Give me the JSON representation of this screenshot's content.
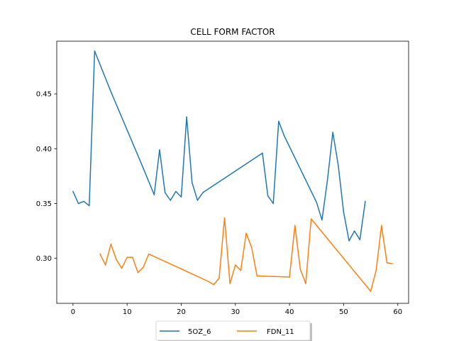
{
  "chart_data": {
    "type": "line",
    "title": "CELL FORM FACTOR",
    "xlabel": "",
    "ylabel": "",
    "xlim": [
      -3,
      62
    ],
    "ylim": [
      0.259,
      0.498
    ],
    "xticks": [
      0,
      10,
      20,
      30,
      40,
      50,
      60
    ],
    "yticks": [
      0.3,
      0.35,
      0.4,
      0.45
    ],
    "xtick_labels": [
      "0",
      "10",
      "20",
      "30",
      "40",
      "50",
      "60"
    ],
    "ytick_labels": [
      "0.30",
      "0.35",
      "0.40",
      "0.45"
    ],
    "grid": false,
    "legend_placement": "bottom-center",
    "series": [
      {
        "name": "5OZ_6",
        "color": "#1f77b4",
        "x": [
          0,
          1,
          2,
          3,
          4,
          7,
          13,
          15,
          16,
          17,
          18,
          19,
          20,
          21,
          22,
          23,
          24,
          35,
          36,
          37,
          38,
          39,
          45,
          46,
          47,
          48,
          49,
          50,
          51,
          52,
          53,
          54
        ],
        "y": [
          0.361,
          0.35,
          0.352,
          0.348,
          0.489,
          0.452,
          0.382,
          0.358,
          0.399,
          0.36,
          0.353,
          0.361,
          0.356,
          0.429,
          0.369,
          0.353,
          0.36,
          0.396,
          0.357,
          0.35,
          0.425,
          0.412,
          0.351,
          0.335,
          0.371,
          0.415,
          0.385,
          0.342,
          0.316,
          0.325,
          0.317,
          0.352
        ]
      },
      {
        "name": "FDN_11",
        "color": "#ff7f0e",
        "x": [
          5,
          6,
          7,
          8,
          9,
          10,
          11,
          12,
          13,
          14,
          25,
          26,
          27,
          28,
          29,
          30,
          31,
          32,
          33,
          34,
          40,
          41,
          42,
          43,
          44,
          55,
          56,
          57,
          58,
          59
        ],
        "y": [
          0.304,
          0.294,
          0.313,
          0.299,
          0.291,
          0.301,
          0.301,
          0.287,
          0.292,
          0.304,
          0.279,
          0.276,
          0.282,
          0.337,
          0.277,
          0.294,
          0.289,
          0.323,
          0.31,
          0.284,
          0.283,
          0.33,
          0.29,
          0.277,
          0.336,
          0.27,
          0.289,
          0.33,
          0.296,
          0.295
        ]
      }
    ]
  }
}
